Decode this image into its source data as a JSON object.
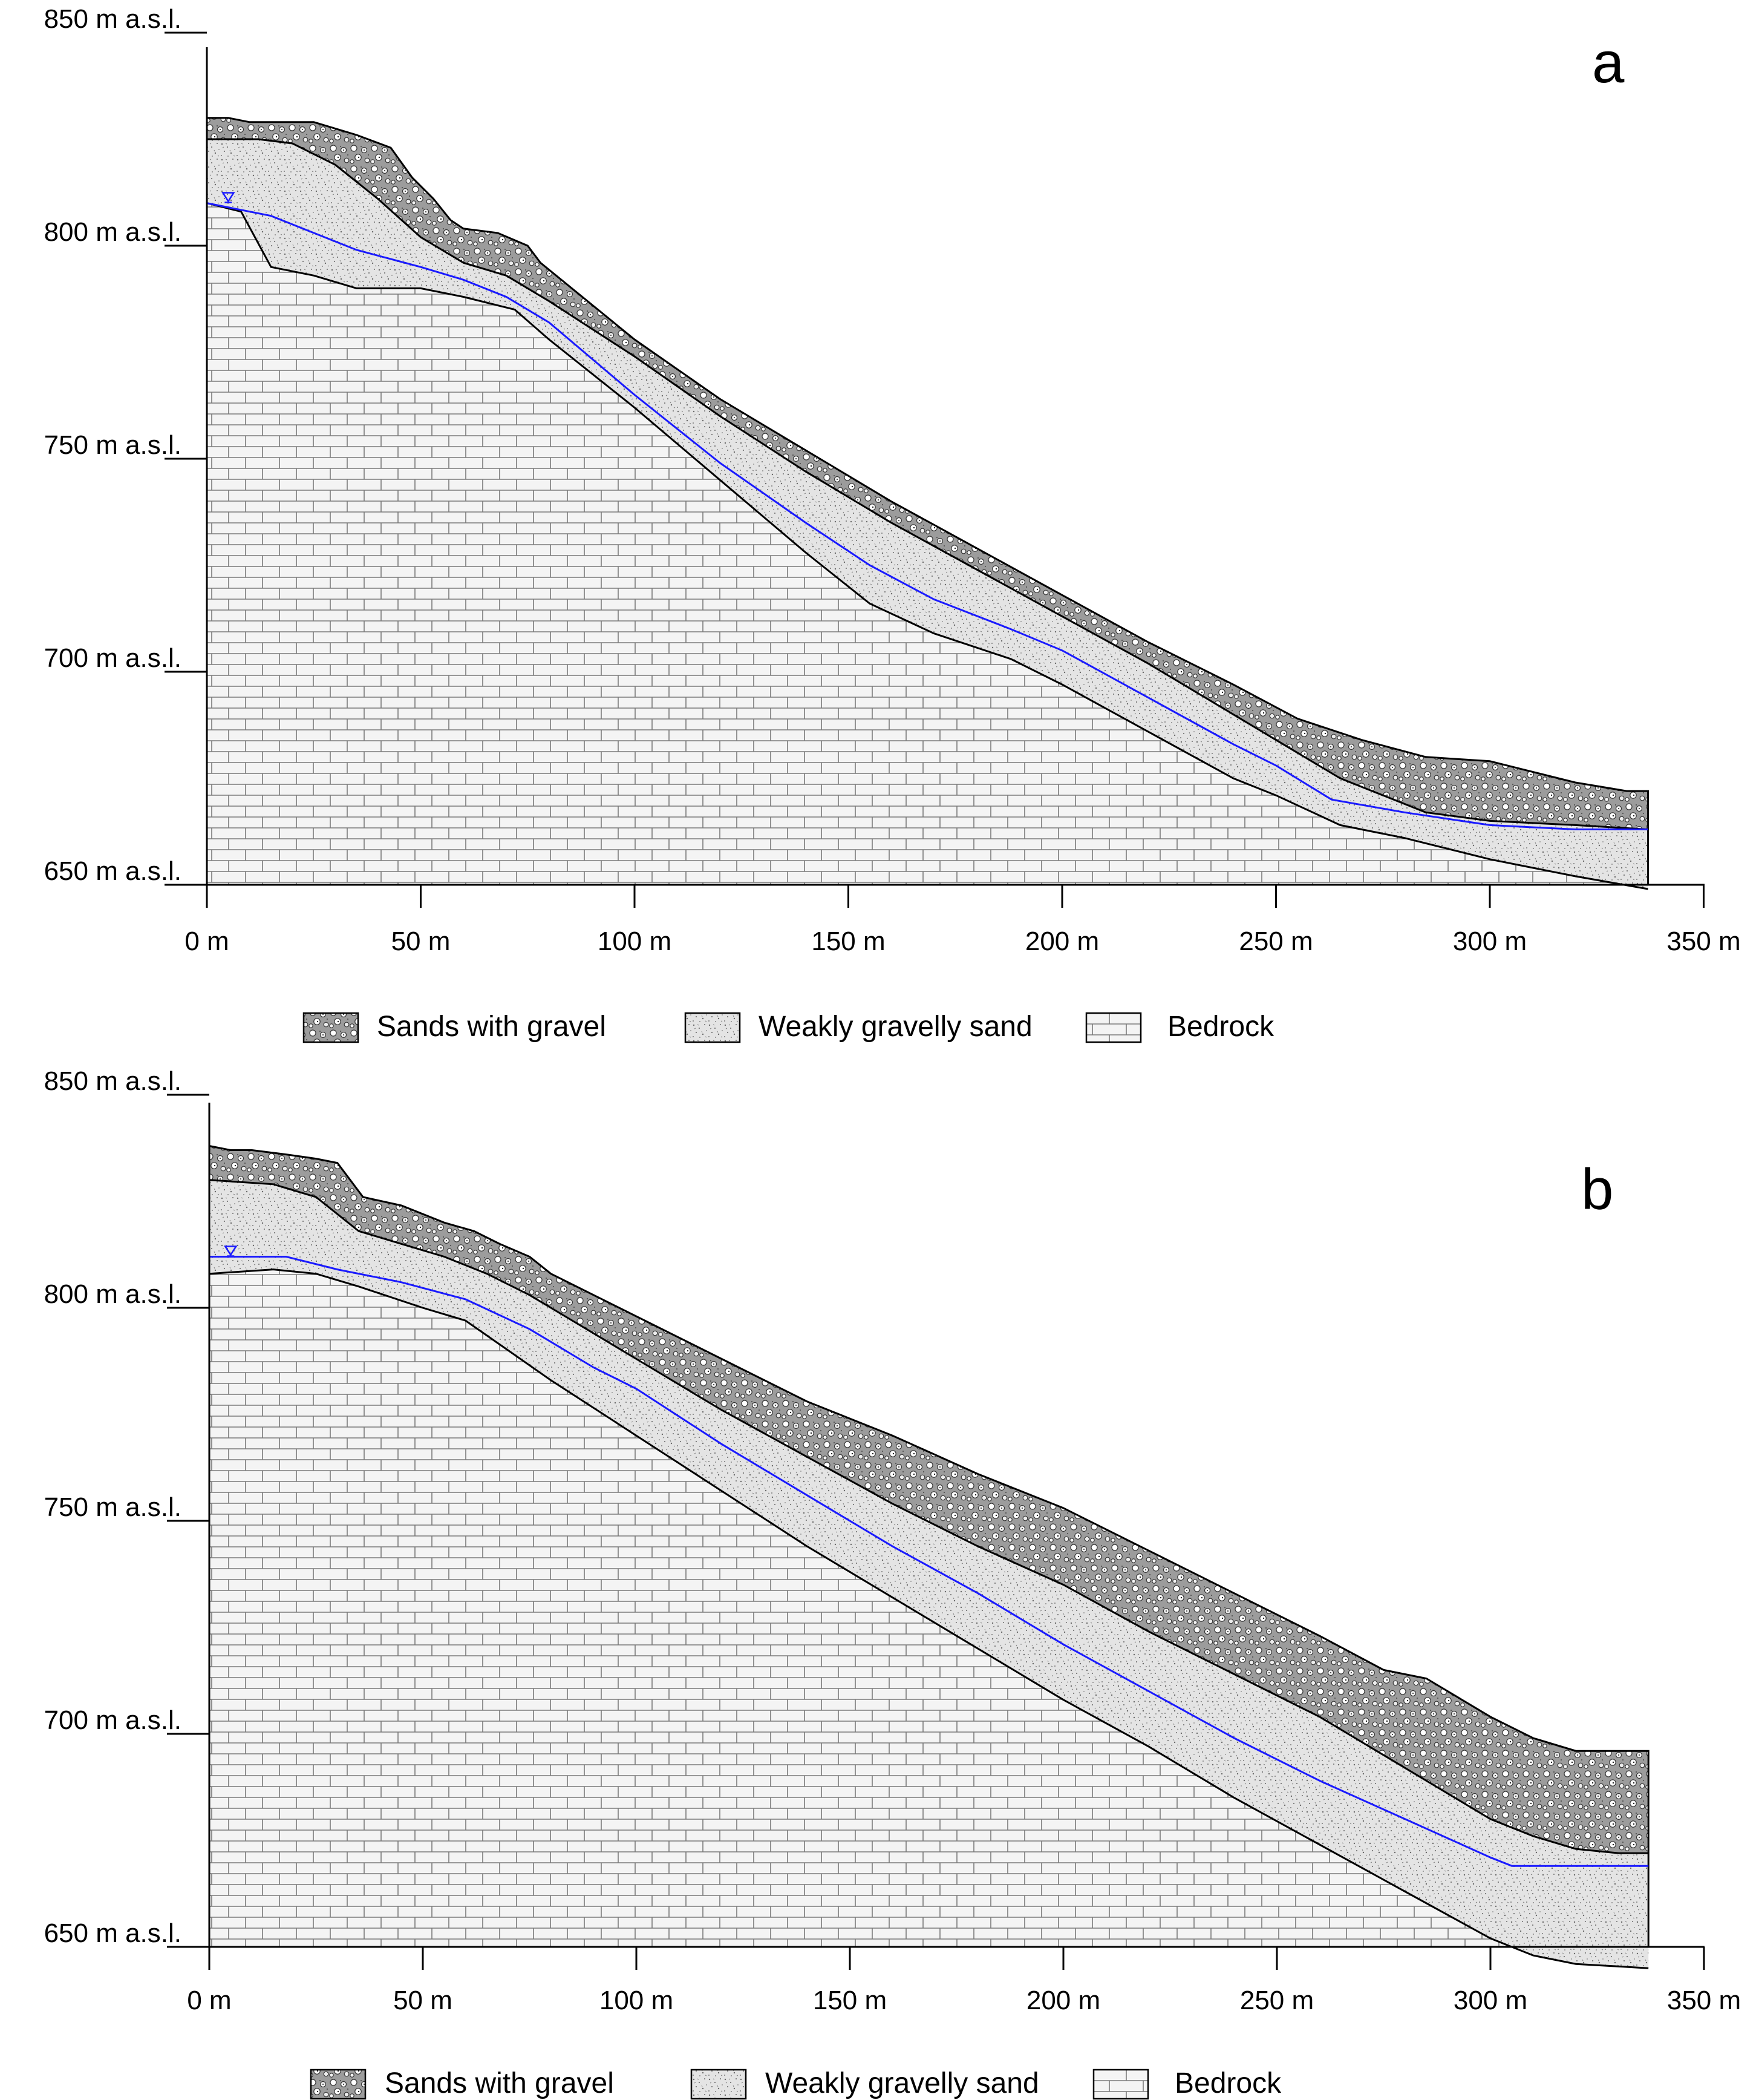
{
  "figure": {
    "type": "geological-cross-section",
    "x_axis": {
      "range": [
        0,
        350
      ],
      "ticks": [
        0,
        50,
        100,
        150,
        200,
        250,
        300,
        350
      ],
      "tick_labels": [
        "0 m",
        "50 m",
        "100 m",
        "150 m",
        "200 m",
        "250 m",
        "300 m",
        "350 m"
      ]
    },
    "y_axis": {
      "range": [
        650,
        850
      ],
      "ticks": [
        650,
        700,
        750,
        800,
        850
      ],
      "tick_labels": [
        "650 m a.s.l.",
        "700 m a.s.l.",
        "750 m a.s.l.",
        "800 m a.s.l.",
        "850 m a.s.l."
      ]
    },
    "legend": {
      "sands_with_gravel": "Sands with gravel",
      "weakly_gravelly_sand": "Weakly gravelly sand",
      "bedrock": "Bedrock"
    },
    "colors": {
      "water_table": "#1a1aff",
      "gravel_fill": "#b0b0b0",
      "sand_fill": "#e2e2e2",
      "bedrock_fill": "#f4f4f4",
      "line": "#000000"
    }
  },
  "panels": [
    {
      "letter": "a",
      "profiles": {
        "surface": [
          [
            0,
            830
          ],
          [
            5,
            830
          ],
          [
            10,
            829
          ],
          [
            25,
            829
          ],
          [
            35,
            826
          ],
          [
            43,
            823
          ],
          [
            48,
            816
          ],
          [
            53,
            811
          ],
          [
            57,
            806
          ],
          [
            60,
            804
          ],
          [
            68,
            803
          ],
          [
            75,
            800
          ],
          [
            78,
            796
          ],
          [
            100,
            778
          ],
          [
            120,
            764
          ],
          [
            140,
            752
          ],
          [
            160,
            740
          ],
          [
            180,
            729
          ],
          [
            200,
            718
          ],
          [
            220,
            707
          ],
          [
            240,
            697
          ],
          [
            255,
            689
          ],
          [
            270,
            684
          ],
          [
            285,
            680
          ],
          [
            300,
            679
          ],
          [
            320,
            674
          ],
          [
            332,
            672
          ],
          [
            337,
            672
          ],
          [
            337,
            650
          ]
        ],
        "gravel_base": [
          [
            0,
            825
          ],
          [
            12,
            825
          ],
          [
            20,
            824
          ],
          [
            30,
            819
          ],
          [
            40,
            811
          ],
          [
            50,
            802
          ],
          [
            60,
            796
          ],
          [
            70,
            793
          ],
          [
            80,
            787
          ],
          [
            100,
            774
          ],
          [
            120,
            760
          ],
          [
            140,
            747
          ],
          [
            160,
            735
          ],
          [
            180,
            724
          ],
          [
            200,
            713
          ],
          [
            220,
            702
          ],
          [
            240,
            690
          ],
          [
            255,
            681
          ],
          [
            265,
            675
          ],
          [
            285,
            667
          ],
          [
            300,
            665
          ],
          [
            320,
            664
          ],
          [
            337,
            663
          ]
        ],
        "sand_base": [
          [
            0,
            810
          ],
          [
            8,
            808
          ],
          [
            15,
            795
          ],
          [
            25,
            793
          ],
          [
            35,
            790
          ],
          [
            50,
            790
          ],
          [
            60,
            788
          ],
          [
            72,
            785
          ],
          [
            80,
            778
          ],
          [
            100,
            762
          ],
          [
            120,
            745
          ],
          [
            140,
            728
          ],
          [
            155,
            716
          ],
          [
            170,
            709
          ],
          [
            188,
            703
          ],
          [
            200,
            697
          ],
          [
            220,
            686
          ],
          [
            240,
            675
          ],
          [
            250,
            671
          ],
          [
            265,
            664
          ],
          [
            280,
            661
          ],
          [
            300,
            656
          ],
          [
            320,
            652
          ],
          [
            337,
            649
          ]
        ],
        "water_table": [
          [
            0,
            810
          ],
          [
            15,
            807
          ],
          [
            25,
            803
          ],
          [
            35,
            799
          ],
          [
            50,
            795
          ],
          [
            60,
            792
          ],
          [
            70,
            788
          ],
          [
            80,
            782
          ],
          [
            100,
            765
          ],
          [
            120,
            749
          ],
          [
            140,
            735
          ],
          [
            155,
            725
          ],
          [
            170,
            717
          ],
          [
            188,
            710
          ],
          [
            200,
            705
          ],
          [
            220,
            694
          ],
          [
            240,
            683
          ],
          [
            250,
            678
          ],
          [
            263,
            670
          ],
          [
            280,
            667
          ],
          [
            300,
            664
          ],
          [
            320,
            663
          ],
          [
            337,
            663
          ]
        ],
        "water_marker": [
          5,
          811
        ]
      }
    },
    {
      "letter": "b",
      "profiles": {
        "surface": [
          [
            0,
            838
          ],
          [
            5,
            837
          ],
          [
            10,
            837
          ],
          [
            18,
            836
          ],
          [
            25,
            835
          ],
          [
            30,
            834
          ],
          [
            33,
            830
          ],
          [
            36,
            826
          ],
          [
            45,
            824
          ],
          [
            55,
            820
          ],
          [
            62,
            818
          ],
          [
            68,
            815
          ],
          [
            75,
            812
          ],
          [
            80,
            808
          ],
          [
            100,
            798
          ],
          [
            120,
            788
          ],
          [
            140,
            778
          ],
          [
            160,
            770
          ],
          [
            180,
            761
          ],
          [
            200,
            753
          ],
          [
            220,
            743
          ],
          [
            240,
            733
          ],
          [
            260,
            723
          ],
          [
            275,
            715
          ],
          [
            285,
            713
          ],
          [
            300,
            704
          ],
          [
            310,
            699
          ],
          [
            320,
            696
          ],
          [
            330,
            696
          ],
          [
            337,
            696
          ],
          [
            337,
            650
          ]
        ],
        "gravel_base": [
          [
            0,
            830
          ],
          [
            15,
            829
          ],
          [
            25,
            826
          ],
          [
            35,
            818
          ],
          [
            45,
            815
          ],
          [
            55,
            812
          ],
          [
            65,
            808
          ],
          [
            75,
            803
          ],
          [
            85,
            797
          ],
          [
            100,
            788
          ],
          [
            120,
            776
          ],
          [
            140,
            765
          ],
          [
            160,
            754
          ],
          [
            180,
            744
          ],
          [
            200,
            735
          ],
          [
            220,
            724
          ],
          [
            240,
            714
          ],
          [
            260,
            704
          ],
          [
            280,
            692
          ],
          [
            300,
            680
          ],
          [
            310,
            676
          ],
          [
            320,
            673
          ],
          [
            330,
            672
          ],
          [
            337,
            672
          ]
        ],
        "sand_base": [
          [
            0,
            808
          ],
          [
            15,
            809
          ],
          [
            25,
            808
          ],
          [
            35,
            805
          ],
          [
            50,
            800
          ],
          [
            60,
            797
          ],
          [
            70,
            790
          ],
          [
            80,
            783
          ],
          [
            100,
            770
          ],
          [
            120,
            757
          ],
          [
            140,
            744
          ],
          [
            160,
            732
          ],
          [
            180,
            720
          ],
          [
            200,
            708
          ],
          [
            220,
            697
          ],
          [
            240,
            685
          ],
          [
            260,
            674
          ],
          [
            280,
            663
          ],
          [
            300,
            652
          ],
          [
            310,
            648
          ],
          [
            320,
            646
          ],
          [
            337,
            645
          ]
        ],
        "water_table": [
          [
            0,
            812
          ],
          [
            18,
            812
          ],
          [
            30,
            809
          ],
          [
            45,
            806
          ],
          [
            60,
            802
          ],
          [
            75,
            795
          ],
          [
            90,
            786
          ],
          [
            100,
            781
          ],
          [
            120,
            768
          ],
          [
            140,
            756
          ],
          [
            160,
            744
          ],
          [
            180,
            733
          ],
          [
            200,
            721
          ],
          [
            220,
            710
          ],
          [
            240,
            699
          ],
          [
            260,
            689
          ],
          [
            280,
            680
          ],
          [
            300,
            671
          ],
          [
            305,
            669
          ],
          [
            337,
            669
          ]
        ],
        "water_marker": [
          5,
          813
        ]
      }
    }
  ]
}
